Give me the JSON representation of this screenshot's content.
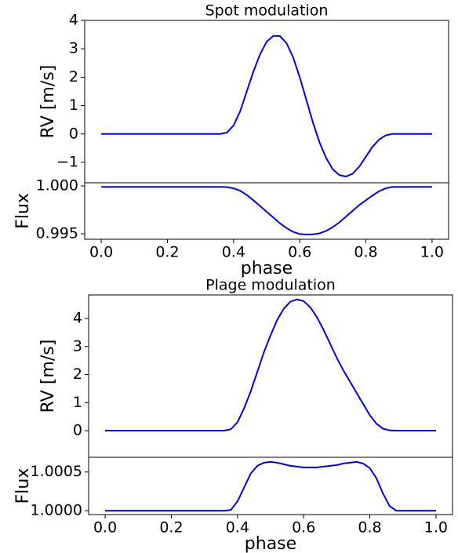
{
  "chart_data": [
    {
      "type": "line",
      "title": "Spot modulation",
      "y_label": "RV [m/s]",
      "x": [
        0,
        0.02,
        0.04,
        0.06,
        0.08,
        0.1,
        0.12,
        0.14,
        0.16,
        0.18,
        0.2,
        0.22,
        0.24,
        0.26,
        0.28,
        0.3,
        0.32,
        0.34,
        0.36,
        0.38,
        0.4,
        0.42,
        0.44,
        0.46,
        0.48,
        0.5,
        0.52,
        0.54,
        0.56,
        0.58,
        0.6,
        0.62,
        0.64,
        0.66,
        0.68,
        0.7,
        0.72,
        0.74,
        0.76,
        0.78,
        0.8,
        0.82,
        0.84,
        0.86,
        0.88,
        0.9,
        0.92,
        0.94,
        0.96,
        0.98,
        1
      ],
      "series": [
        {
          "color": "#0000ff",
          "values": [
            0,
            0,
            0,
            0,
            0,
            0,
            0,
            0,
            0,
            0,
            0,
            0,
            0,
            0,
            0,
            0,
            0,
            0,
            0,
            0.05,
            0.3,
            0.8,
            1.5,
            2.2,
            2.8,
            3.25,
            3.45,
            3.45,
            3.2,
            2.7,
            2.0,
            1.2,
            0.4,
            -0.3,
            -0.85,
            -1.25,
            -1.45,
            -1.5,
            -1.4,
            -1.15,
            -0.8,
            -0.45,
            -0.2,
            -0.05,
            0,
            0,
            0,
            0,
            0,
            0,
            0
          ]
        }
      ],
      "xlim": [
        -0.05,
        1.05
      ],
      "ylim": [
        -1.72,
        4
      ],
      "yticks": [
        {
          "value": -1,
          "label": "−1"
        },
        0,
        1,
        2,
        3,
        4
      ]
    },
    {
      "type": "line",
      "y_label": "Flux",
      "x_label": "phase",
      "x": [
        0,
        0.02,
        0.04,
        0.06,
        0.08,
        0.1,
        0.12,
        0.14,
        0.16,
        0.18,
        0.2,
        0.22,
        0.24,
        0.26,
        0.28,
        0.3,
        0.32,
        0.34,
        0.36,
        0.38,
        0.4,
        0.42,
        0.44,
        0.46,
        0.48,
        0.5,
        0.52,
        0.54,
        0.56,
        0.58,
        0.6,
        0.62,
        0.64,
        0.66,
        0.68,
        0.7,
        0.72,
        0.74,
        0.76,
        0.78,
        0.8,
        0.82,
        0.84,
        0.86,
        0.88,
        0.9,
        0.92,
        0.94,
        0.96,
        0.98,
        1
      ],
      "series": [
        {
          "color": "#0000ff",
          "values": [
            0.9999,
            0.9999,
            0.9999,
            0.9999,
            0.9999,
            0.9999,
            0.9999,
            0.9999,
            0.9999,
            0.9999,
            0.9999,
            0.9999,
            0.9999,
            0.9999,
            0.9999,
            0.9999,
            0.9999,
            0.9999,
            0.9999,
            0.99988,
            0.99975,
            0.9995,
            0.99905,
            0.9985,
            0.9979,
            0.9973,
            0.9967,
            0.9961,
            0.9956,
            0.9952,
            0.99497,
            0.99492,
            0.99494,
            0.99505,
            0.9953,
            0.9957,
            0.9962,
            0.9968,
            0.9974,
            0.998,
            0.9985,
            0.999,
            0.99945,
            0.99975,
            0.9999,
            0.9999,
            0.9999,
            0.9999,
            0.9999,
            0.9999,
            0.9999
          ]
        }
      ],
      "xlim": [
        -0.05,
        1.05
      ],
      "ylim": [
        0.99443,
        1.00033
      ],
      "xticks": [
        {
          "value": 0,
          "label": "0.0"
        },
        {
          "value": 0.2,
          "label": "0.2"
        },
        {
          "value": 0.4,
          "label": "0.4"
        },
        {
          "value": 0.6,
          "label": "0.6"
        },
        {
          "value": 0.8,
          "label": "0.8"
        },
        {
          "value": 1,
          "label": "1.0"
        }
      ],
      "yticks": [
        {
          "value": 0.995,
          "label": "0.995"
        },
        {
          "value": 1,
          "label": "1.000"
        }
      ]
    },
    {
      "type": "line",
      "title": "Plage modulation",
      "y_label": "RV [m/s]",
      "x": [
        0,
        0.02,
        0.04,
        0.06,
        0.08,
        0.1,
        0.12,
        0.14,
        0.16,
        0.18,
        0.2,
        0.22,
        0.24,
        0.26,
        0.28,
        0.3,
        0.32,
        0.34,
        0.36,
        0.38,
        0.4,
        0.42,
        0.44,
        0.46,
        0.48,
        0.5,
        0.52,
        0.54,
        0.56,
        0.58,
        0.6,
        0.62,
        0.64,
        0.66,
        0.68,
        0.7,
        0.72,
        0.74,
        0.76,
        0.78,
        0.8,
        0.82,
        0.84,
        0.86,
        0.88,
        0.9,
        0.92,
        0.94,
        0.96,
        0.98,
        1
      ],
      "series": [
        {
          "color": "#0000ff",
          "values": [
            0,
            0,
            0,
            0,
            0,
            0,
            0,
            0,
            0,
            0,
            0,
            0,
            0,
            0,
            0,
            0,
            0,
            0,
            0,
            0.05,
            0.3,
            0.8,
            1.4,
            2.1,
            2.8,
            3.4,
            3.95,
            4.35,
            4.6,
            4.68,
            4.62,
            4.4,
            4.05,
            3.6,
            3.1,
            2.6,
            2.15,
            1.75,
            1.35,
            0.95,
            0.55,
            0.25,
            0.07,
            0.01,
            0,
            0,
            0,
            0,
            0,
            0,
            0
          ]
        }
      ],
      "xlim": [
        -0.05,
        1.05
      ],
      "ylim": [
        -0.95,
        4.84
      ],
      "yticks": [
        0,
        1,
        2,
        3,
        4
      ]
    },
    {
      "type": "line",
      "y_label": "Flux",
      "x_label": "phase",
      "x": [
        0,
        0.02,
        0.04,
        0.06,
        0.08,
        0.1,
        0.12,
        0.14,
        0.16,
        0.18,
        0.2,
        0.22,
        0.24,
        0.26,
        0.28,
        0.3,
        0.32,
        0.34,
        0.36,
        0.38,
        0.4,
        0.42,
        0.44,
        0.46,
        0.48,
        0.5,
        0.52,
        0.54,
        0.56,
        0.58,
        0.6,
        0.62,
        0.64,
        0.66,
        0.68,
        0.7,
        0.72,
        0.74,
        0.76,
        0.78,
        0.8,
        0.82,
        0.84,
        0.86,
        0.88,
        0.9,
        0.92,
        0.94,
        0.96,
        0.98,
        1
      ],
      "series": [
        {
          "color": "#0000ff",
          "values": [
            1,
            1,
            1,
            1,
            1,
            1,
            1,
            1,
            1,
            1,
            1,
            1,
            1,
            1,
            1,
            1,
            1,
            1,
            1,
            1.00001,
            1.00012,
            1.0003,
            1.00048,
            1.00058,
            1.00062,
            1.00063,
            1.00062,
            1.0006,
            1.00058,
            1.00057,
            1.00056,
            1.00056,
            1.00056,
            1.00057,
            1.00058,
            1.00059,
            1.00061,
            1.00062,
            1.00063,
            1.00061,
            1.00055,
            1.00042,
            1.00022,
            1.00006,
            1,
            1,
            1,
            1,
            1,
            1,
            1
          ]
        }
      ],
      "xlim": [
        -0.05,
        1.05
      ],
      "ylim": [
        0.99995,
        1.00069
      ],
      "xticks": [
        {
          "value": 0,
          "label": "0.0"
        },
        {
          "value": 0.2,
          "label": "0.2"
        },
        {
          "value": 0.4,
          "label": "0.4"
        },
        {
          "value": 0.6,
          "label": "0.6"
        },
        {
          "value": 0.8,
          "label": "0.8"
        },
        {
          "value": 1,
          "label": "1.0"
        }
      ],
      "yticks": [
        {
          "value": 1,
          "label": "1.0000"
        },
        {
          "value": 1.0005,
          "label": "1.0005"
        }
      ]
    }
  ]
}
